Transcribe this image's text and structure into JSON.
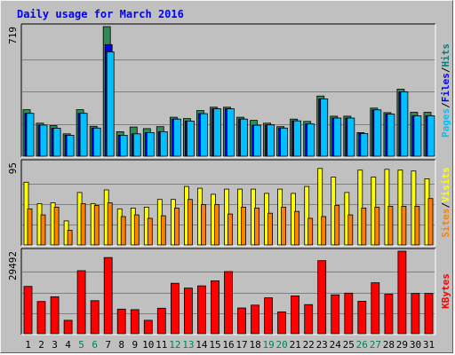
{
  "chart_data": {
    "type": "bar",
    "title": "Daily usage for March 2016",
    "categories": [
      "1",
      "2",
      "3",
      "4",
      "5",
      "6",
      "7",
      "8",
      "9",
      "10",
      "11",
      "12",
      "13",
      "14",
      "15",
      "16",
      "17",
      "18",
      "19",
      "20",
      "21",
      "22",
      "23",
      "24",
      "25",
      "26",
      "27",
      "28",
      "29",
      "30",
      "31"
    ],
    "weekend_days": [
      "5",
      "6",
      "12",
      "13",
      "19",
      "20",
      "26",
      "27"
    ],
    "panels": [
      {
        "name": "top",
        "scale_max_label": "719",
        "ylim": [
          0,
          719
        ],
        "series_label": "Pages / Files / Hits",
        "legend": [
          {
            "text": "Pages",
            "color": "#00c0ff"
          },
          {
            "text": "/",
            "color": "#000000"
          },
          {
            "text": "Files",
            "color": "#0000ff"
          },
          {
            "text": "/",
            "color": "#000000"
          },
          {
            "text": "Hits",
            "color": "#008080"
          }
        ],
        "series": [
          {
            "name": "Hits",
            "color": "#2e8b57",
            "values": [
              258,
              183,
              170,
              124,
              258,
              166,
              719,
              136,
              162,
              153,
              164,
              216,
              209,
              253,
              272,
              272,
              216,
              199,
              183,
              164,
              206,
              193,
              334,
              222,
              222,
              131,
              267,
              242,
              372,
              244,
              244
            ]
          },
          {
            "name": "Files",
            "color": "#0000ff",
            "values": [
              238,
              173,
              155,
              116,
              238,
              156,
              619,
              116,
              124,
              131,
              136,
              206,
              195,
              236,
              263,
              263,
              206,
              172,
              174,
              156,
              196,
              179,
              318,
              212,
              212,
              126,
              257,
              234,
              357,
              224,
              224
            ]
          },
          {
            "name": "Pages",
            "color": "#00c0ff",
            "values": [
              238,
              173,
              155,
              116,
              238,
              156,
              579,
              116,
              124,
              131,
              136,
              206,
              195,
              236,
              263,
              263,
              206,
              172,
              174,
              156,
              196,
              179,
              318,
              212,
              212,
              126,
              257,
              234,
              357,
              224,
              224
            ]
          }
        ]
      },
      {
        "name": "middle",
        "scale_max_label": "95",
        "ylim": [
          0,
          95
        ],
        "series_label": "Sites / Visits",
        "legend": [
          {
            "text": "Sites",
            "color": "#ff8000"
          },
          {
            "text": "/",
            "color": "#000000"
          },
          {
            "text": "Visits",
            "color": "#ffff00"
          }
        ],
        "series": [
          {
            "name": "Visits",
            "color": "#ffff00",
            "values": [
              73,
              48,
              49,
              28,
              61,
              48,
              64,
              42,
              43,
              44,
              53,
              53,
              68,
              66,
              59,
              65,
              65,
              65,
              60,
              65,
              60,
              68,
              89,
              79,
              61,
              87,
              79,
              88,
              87,
              86,
              77
            ]
          },
          {
            "name": "Sites",
            "color": "#ff8000",
            "values": [
              42,
              35,
              44,
              17,
              48,
              46,
              49,
              33,
              35,
              31,
              34,
              43,
              53,
              47,
              47,
              36,
              44,
              43,
              37,
              44,
              39,
              31,
              33,
              46,
              35,
              43,
              44,
              45,
              45,
              45,
              54
            ]
          }
        ]
      },
      {
        "name": "bottom",
        "scale_max_label": "29492",
        "ylim": [
          0,
          29492
        ],
        "series_label": "KBytes",
        "legend": [
          {
            "text": "KBytes",
            "color": "#ff0000"
          }
        ],
        "series": [
          {
            "name": "KBytes",
            "color": "#ff0000",
            "values": [
              16900,
              11500,
              13200,
              4800,
              22500,
              11800,
              27200,
              8800,
              8600,
              4800,
              9100,
              18000,
              16300,
              17100,
              18900,
              22200,
              9200,
              10200,
              12800,
              7800,
              13500,
              10400,
              26100,
              13900,
              14500,
              11600,
              18200,
              14100,
              29492,
              14400,
              14400
            ]
          }
        ]
      }
    ]
  }
}
